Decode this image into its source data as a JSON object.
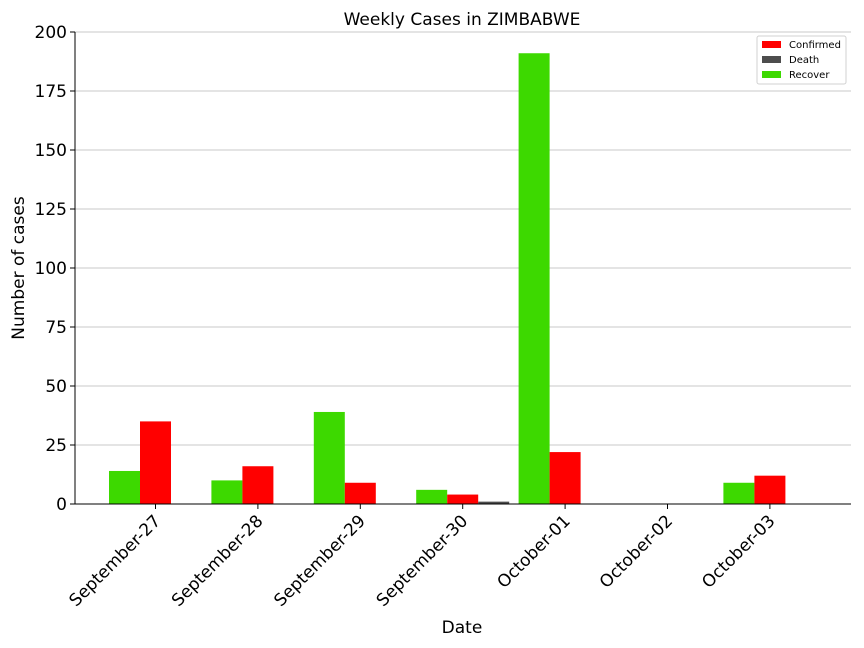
{
  "chart_data": {
    "type": "bar",
    "title": "Weekly Cases in ZIMBABWE",
    "xlabel": "Date",
    "ylabel": "Number of cases",
    "ylim": [
      0,
      200
    ],
    "yticks": [
      0,
      25,
      50,
      75,
      100,
      125,
      150,
      175,
      200
    ],
    "grid": "horizontal",
    "legend_position": "top-right",
    "categories": [
      "September-27",
      "September-28",
      "September-29",
      "September-30",
      "October-01",
      "October-02",
      "October-03"
    ],
    "series": [
      {
        "name": "Confirmed",
        "color": "#ff0000",
        "values": [
          35,
          16,
          9,
          4,
          22,
          0,
          12
        ]
      },
      {
        "name": "Death",
        "color": "#4d4d4d",
        "values": [
          0,
          0,
          0,
          1,
          0,
          0,
          0
        ]
      },
      {
        "name": "Recover",
        "color": "#3dd900",
        "values": [
          14,
          10,
          39,
          6,
          191,
          0,
          9
        ]
      }
    ]
  }
}
